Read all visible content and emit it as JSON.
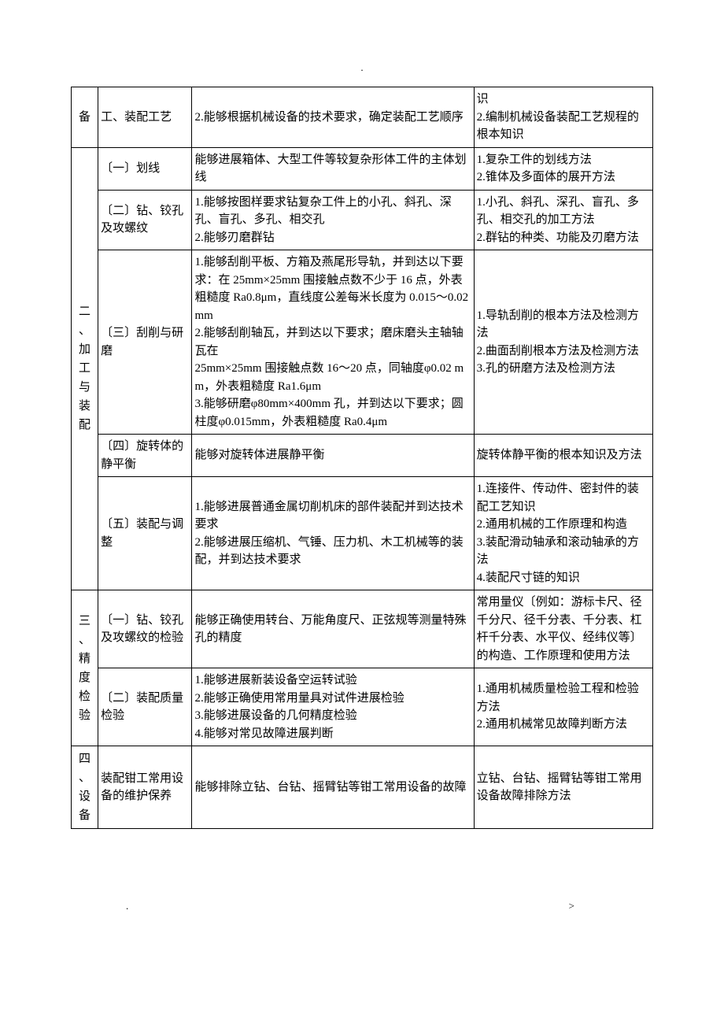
{
  "header_mark": ".",
  "footer_left": ".",
  "footer_right": ">",
  "rows": [
    {
      "cat": "备",
      "sub": "工、装配工艺",
      "skill": "2.能够根据机械设备的技术要求，确定装配工艺顺序",
      "know": "识\n2.编制机械设备装配工艺规程的根本知识"
    },
    {
      "cat": "二、加工与装配",
      "sub1": "〔一〕划线",
      "skill1": "能够进展箱体、大型工件等较复杂形体工件的主体划线",
      "know1": "1.复杂工件的划线方法\n2.锥体及多面体的展开方法",
      "sub2": "〔二〕钻、铰孔及攻螺纹",
      "skill2": "1.能够按图样要求钻复杂工件上的小孔、斜孔、深孔、盲孔、多孔、相交孔\n2.能够刃磨群钻",
      "know2": "1.小孔、斜孔、深孔、盲孔、多孔、相交孔的加工方法\n2.群钻的种类、功能及刃磨方法",
      "sub3": "〔三〕刮削与研磨",
      "skill3": "1.能够刮削平板、方箱及燕尾形导轨，并到达以下要求：在 25mm×25mm 围接触点数不少于 16 点，外表粗糙度 Ra0.8μm，直线度公差每米长度为 0.015～0.02 mm\n2.能够刮削轴瓦，并到达以下要求；磨床磨头主轴轴瓦在\n25mm×25mm 围接触点数 16～20 点，同轴度φ0.02 mm，外表粗糙度 Ra1.6μm\n3.能够研磨φ80mm×400mm 孔，并到达以下要求；圆柱度φ0.015mm，外表粗糙度 Ra0.4μm",
      "know3": "1.导轨刮削的根本方法及检测方法\n2.曲面刮削根本方法及检测方法\n3.孔的研磨方法及检测方法",
      "sub4": "〔四〕旋转体的静平衡",
      "skill4": "能够对旋转体进展静平衡",
      "know4": "旋转体静平衡的根本知识及方法",
      "sub5": "〔五〕装配与调整",
      "skill5": "1.能够进展普通金属切削机床的部件装配并到达技术要求\n2.能够进展压缩机、气锤、压力机、木工机械等的装配，并到达技术要求",
      "know5": "1.连接件、传动件、密封件的装配工艺知识\n2.通用机械的工作原理和构造\n3.装配滑动轴承和滚动轴承的方法\n4.装配尺寸链的知识"
    },
    {
      "cat": "三、精度检验",
      "sub1": "〔一〕钻、铰孔及攻螺纹的检验",
      "skill1": "能够正确使用转台、万能角度尺、正弦规等测量特殊孔的精度",
      "know1": "常用量仪〔例如：游标卡尺、径千分尺、径千分表、千分表、杠杆千分表、水平仪、经纬仪等〕的构造、工作原理和使用方法",
      "sub2": "〔二〕装配质量检验",
      "skill2": "1.能够进展新装设备空运转试验\n2.能够正确使用常用量具对试件进展检验\n3.能够进展设备的几何精度检验\n4.能够对常见故障进展判断",
      "know2": "1.通用机械质量检验工程和检验方法\n2.通用机械常见故障判断方法"
    },
    {
      "cat": "四、设备",
      "sub": "装配钳工常用设备的维护保养",
      "skill": "能够排除立钻、台钻、摇臂钻等钳工常用设备的故障",
      "know": "立钻、台钻、摇臂钻等钳工常用设备故障排除方法"
    }
  ]
}
